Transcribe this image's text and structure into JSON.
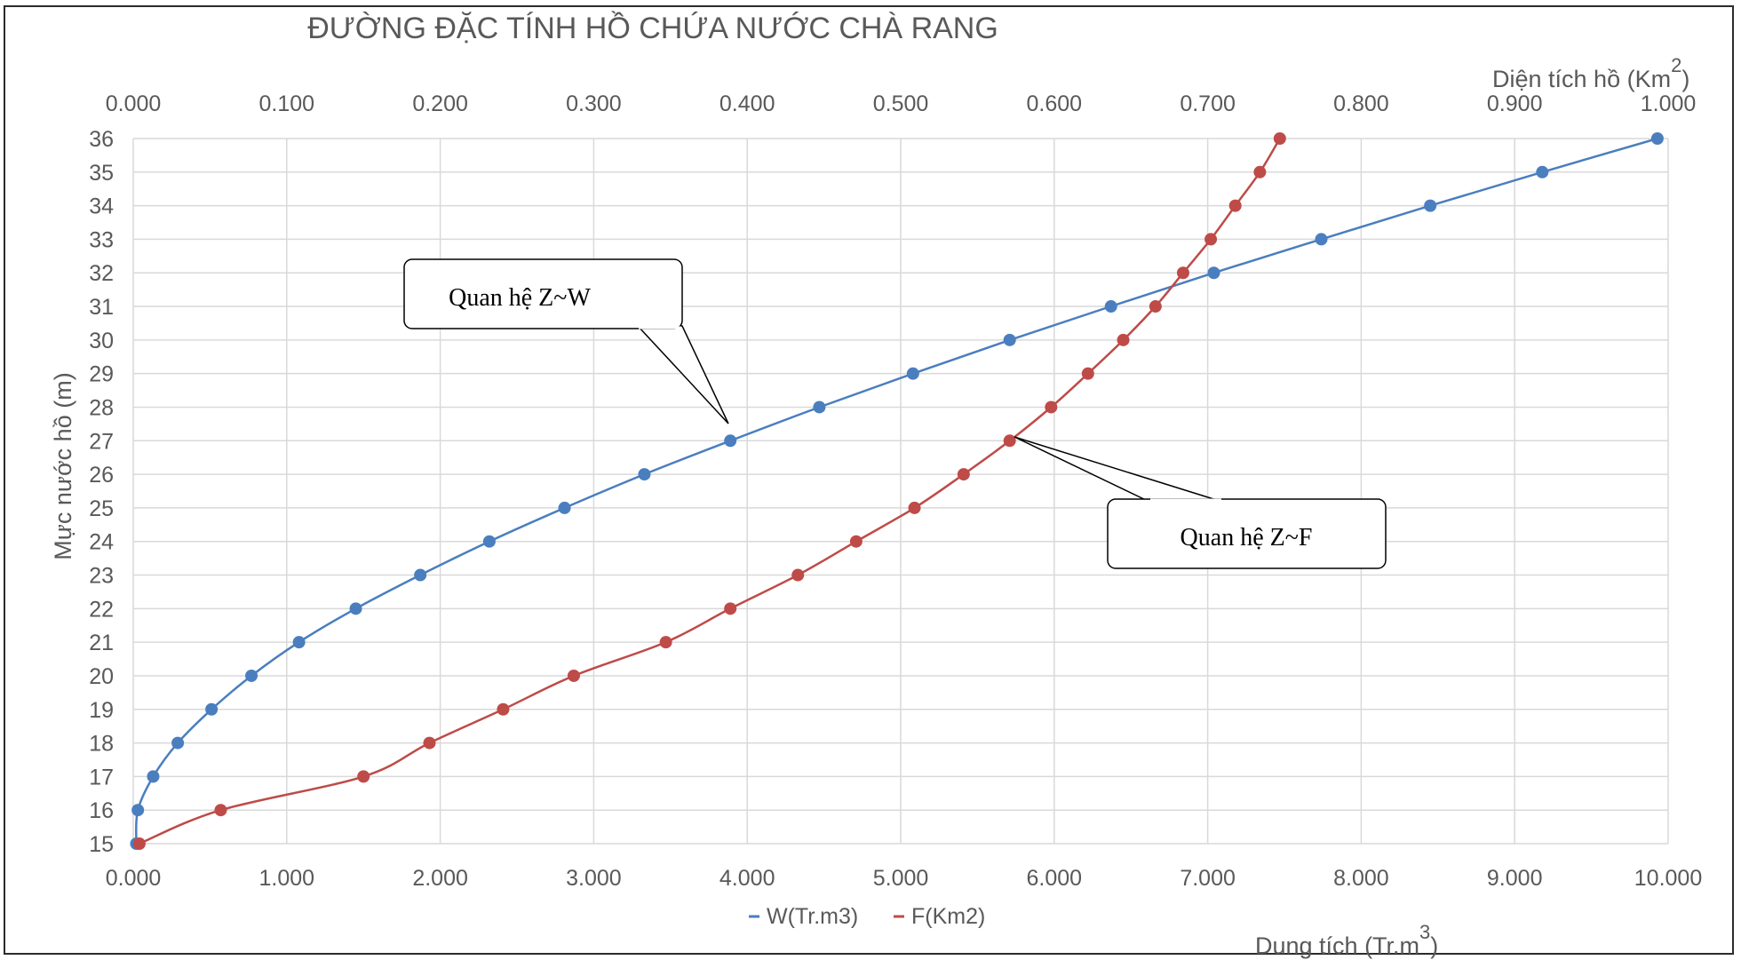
{
  "chart_data": {
    "type": "line",
    "title": "ĐƯỜNG ĐẶC TÍNH HỒ CHỨA NƯỚC CHÀ RANG",
    "ylabel": "Mực nước hồ (m)",
    "xlabel_bottom": "Dung tích (Tr.m",
    "xlabel_bottom_sup": "3",
    "xlabel_bottom_close": ")",
    "xlabel_top": "Diện tích hồ (Km",
    "xlabel_top_sup": "2",
    "xlabel_top_close": ")",
    "ylim": [
      15,
      36
    ],
    "y_ticks": [
      "15",
      "16",
      "17",
      "18",
      "19",
      "20",
      "21",
      "22",
      "23",
      "24",
      "25",
      "26",
      "27",
      "28",
      "29",
      "30",
      "31",
      "32",
      "33",
      "34",
      "35",
      "36"
    ],
    "xlim_bottom": [
      0,
      10
    ],
    "x_ticks_bottom": [
      "0.000",
      "1.000",
      "2.000",
      "3.000",
      "4.000",
      "5.000",
      "6.000",
      "7.000",
      "8.000",
      "9.000",
      "10.000"
    ],
    "xlim_top": [
      0,
      1
    ],
    "x_ticks_top": [
      "0.000",
      "0.100",
      "0.200",
      "0.300",
      "0.400",
      "0.500",
      "0.600",
      "0.700",
      "0.800",
      "0.900",
      "1.000"
    ],
    "grid": true,
    "legend_position": "bottom",
    "series": [
      {
        "name": "W(Tr.m3)",
        "axis": "bottom",
        "color": "#4a7ebf",
        "points": [
          [
            0.02,
            15
          ],
          [
            0.03,
            16
          ],
          [
            0.13,
            17
          ],
          [
            0.29,
            18
          ],
          [
            0.51,
            19
          ],
          [
            0.77,
            20
          ],
          [
            1.08,
            21
          ],
          [
            1.45,
            22
          ],
          [
            1.87,
            23
          ],
          [
            2.32,
            24
          ],
          [
            2.81,
            25
          ],
          [
            3.33,
            26
          ],
          [
            3.89,
            27
          ],
          [
            4.47,
            28
          ],
          [
            5.08,
            29
          ],
          [
            5.71,
            30
          ],
          [
            6.37,
            31
          ],
          [
            7.04,
            32
          ],
          [
            7.74,
            33
          ],
          [
            8.45,
            34
          ],
          [
            9.18,
            35
          ],
          [
            9.93,
            36
          ]
        ]
      },
      {
        "name": "F(Km2)",
        "axis": "top",
        "color": "#be4b48",
        "points": [
          [
            0.004,
            15
          ],
          [
            0.057,
            16
          ],
          [
            0.15,
            17
          ],
          [
            0.193,
            18
          ],
          [
            0.241,
            19
          ],
          [
            0.287,
            20
          ],
          [
            0.347,
            21
          ],
          [
            0.389,
            22
          ],
          [
            0.433,
            23
          ],
          [
            0.471,
            24
          ],
          [
            0.509,
            25
          ],
          [
            0.541,
            26
          ],
          [
            0.571,
            27
          ],
          [
            0.598,
            28
          ],
          [
            0.622,
            29
          ],
          [
            0.645,
            30
          ],
          [
            0.666,
            31
          ],
          [
            0.684,
            32
          ],
          [
            0.702,
            33
          ],
          [
            0.718,
            34
          ],
          [
            0.734,
            35
          ],
          [
            0.747,
            36
          ]
        ]
      }
    ],
    "annotations": [
      {
        "text": "Quan hệ Z~W",
        "points_to": [
          3.89,
          27
        ]
      },
      {
        "text": "Quan hệ Z~F",
        "points_to": [
          5.71,
          27
        ]
      }
    ]
  }
}
